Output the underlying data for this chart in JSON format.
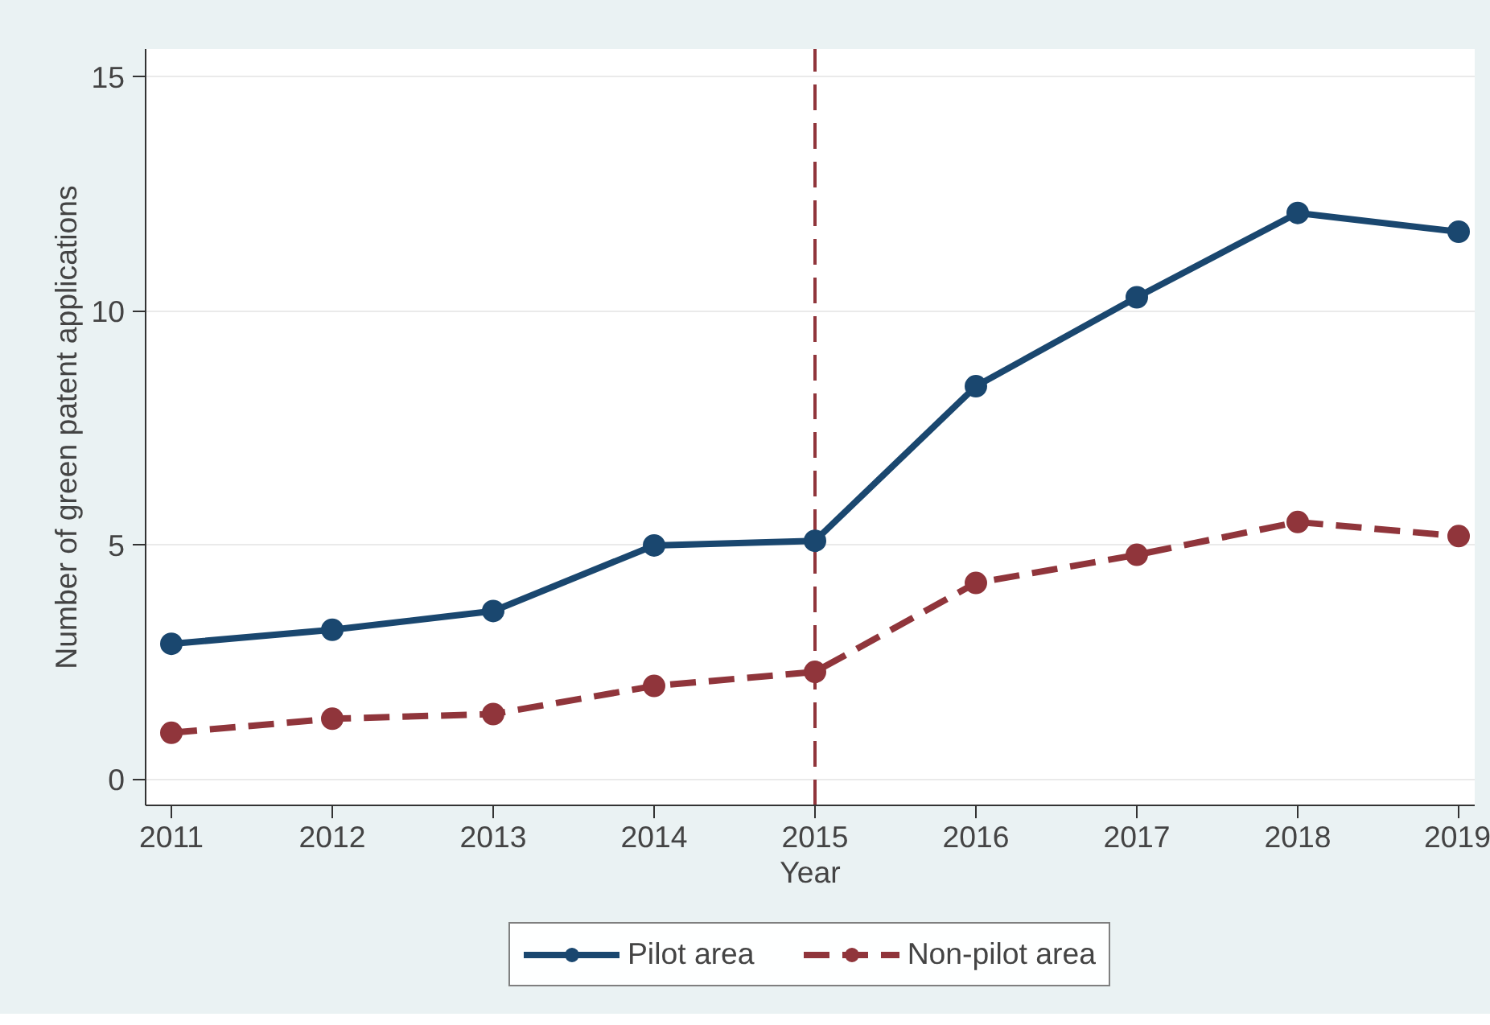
{
  "chart_data": {
    "type": "line",
    "xlabel": "Year",
    "ylabel": "Number of green patent applications",
    "x": [
      2011,
      2012,
      2013,
      2014,
      2015,
      2016,
      2017,
      2018,
      2019
    ],
    "series": [
      {
        "name": "Pilot area",
        "color": "#1a476f",
        "line_style": "solid",
        "values": [
          2.9,
          3.2,
          3.6,
          5.0,
          5.1,
          8.4,
          10.3,
          12.1,
          11.7
        ]
      },
      {
        "name": "Non-pilot area",
        "color": "#90353b",
        "line_style": "dashed",
        "values": [
          1.0,
          1.3,
          1.4,
          2.0,
          2.3,
          4.2,
          4.8,
          5.5,
          5.2
        ]
      }
    ],
    "xlim": [
      2010.84,
      2019.1
    ],
    "ylim": [
      -0.55,
      15.6
    ],
    "xticks": [
      2011,
      2012,
      2013,
      2014,
      2015,
      2016,
      2017,
      2018,
      2019
    ],
    "yticks": [
      0,
      5,
      10,
      15
    ],
    "ref_lines": [
      {
        "axis": "x",
        "value": 2015,
        "color": "#90353b",
        "line_style": "dashed"
      }
    ],
    "grid": "y",
    "legend": "bottom",
    "marker": "circle"
  }
}
